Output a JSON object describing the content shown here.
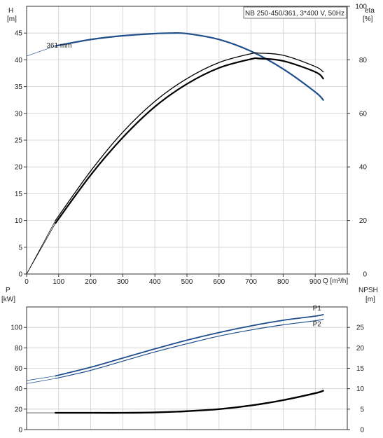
{
  "chart_data": [
    {
      "type": "line",
      "title": "NB 250-450/361, 3*400 V, 50Hz",
      "xlabel": "Q [m³/h]",
      "ylabel": "H",
      "ylabel_unit": "[m]",
      "y2label": "eta",
      "y2label_unit": "[%]",
      "xlim": [
        0,
        1000
      ],
      "ylim": [
        0,
        50
      ],
      "y2lim": [
        0,
        100
      ],
      "x_ticks": [
        0,
        100,
        200,
        300,
        400,
        500,
        600,
        700,
        800,
        900
      ],
      "y_ticks": [
        0,
        5,
        10,
        15,
        20,
        25,
        30,
        35,
        40,
        45
      ],
      "y2_ticks": [
        0,
        20,
        40,
        60,
        80,
        100
      ],
      "grid": true,
      "annotations": [
        {
          "text": "361 mm",
          "x": 62,
          "y": 42.3
        }
      ],
      "series": [
        {
          "name": "H",
          "axis": "left",
          "color": "#1f4e8c",
          "x": [
            90,
            200,
            300,
            400,
            450,
            500,
            600,
            700,
            800,
            900,
            925
          ],
          "y": [
            42.6,
            43.8,
            44.5,
            44.9,
            45.0,
            44.9,
            43.8,
            41.6,
            38.3,
            34.0,
            32.5
          ],
          "extension_x": [
            0,
            90
          ],
          "extension_y": [
            40.7,
            42.6
          ]
        },
        {
          "name": "eta",
          "axis": "right",
          "color": "#000000",
          "x": [
            90,
            200,
            300,
            400,
            500,
            600,
            700,
            725,
            800,
            900,
            925
          ],
          "y": [
            19,
            37,
            51,
            62.5,
            71,
            77,
            80.3,
            80.5,
            79.6,
            75.5,
            73
          ],
          "extension_x": [
            0,
            90
          ],
          "extension_y": [
            0,
            19
          ]
        },
        {
          "name": "eta",
          "axis": "right",
          "color": "#000000",
          "x": [
            90,
            200,
            300,
            400,
            500,
            600,
            700,
            725,
            800,
            900,
            925
          ],
          "y": [
            20,
            38.5,
            53,
            64.5,
            73,
            79,
            82.3,
            82.5,
            81.7,
            77.5,
            75.5
          ],
          "extension_x": [
            0,
            90
          ],
          "extension_y": [
            0,
            20
          ]
        }
      ]
    },
    {
      "type": "line",
      "title": "",
      "xlabel": "",
      "ylabel": "P",
      "ylabel_unit": "[kW]",
      "y2label": "NPSH",
      "y2label_unit": "[m]",
      "xlim": [
        0,
        1000
      ],
      "ylim": [
        0,
        120
      ],
      "y2lim": [
        0,
        30
      ],
      "y_ticks": [
        0,
        20,
        40,
        60,
        80,
        100
      ],
      "y2_ticks": [
        0,
        5,
        10,
        15,
        20,
        25
      ],
      "grid": true,
      "series": [
        {
          "name": "P1",
          "axis": "left",
          "color": "#1f4e8c",
          "x": [
            90,
            200,
            300,
            400,
            500,
            600,
            700,
            800,
            900,
            925
          ],
          "y": [
            52.5,
            61,
            70,
            79,
            87.5,
            95,
            101.5,
            107,
            111,
            112.5
          ],
          "extension_x": [
            0,
            90
          ],
          "extension_y": [
            48,
            52.5
          ]
        },
        {
          "name": "P2",
          "axis": "left",
          "color": "#1f4e8c",
          "x": [
            90,
            200,
            300,
            400,
            500,
            600,
            700,
            800,
            900,
            925
          ],
          "y": [
            50,
            58,
            67,
            76,
            84,
            91.5,
            97.5,
            102.5,
            106.5,
            108
          ],
          "extension_x": [
            0,
            90
          ],
          "extension_y": [
            45,
            50
          ]
        },
        {
          "name": "NPSH",
          "axis": "right",
          "color": "#000000",
          "x": [
            90,
            200,
            300,
            400,
            500,
            600,
            700,
            800,
            900,
            925
          ],
          "y": [
            4.1,
            4.1,
            4.1,
            4.2,
            4.5,
            5.0,
            5.9,
            7.2,
            8.9,
            9.5
          ],
          "extension_x": [
            0,
            90
          ],
          "extension_y": [
            4.1,
            4.1
          ]
        }
      ]
    }
  ]
}
